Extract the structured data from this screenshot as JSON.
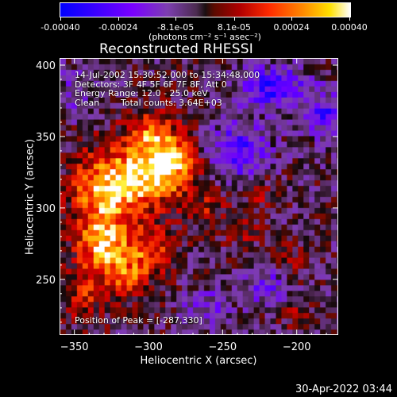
{
  "chart_data": {
    "type": "heatmap",
    "title": "Reconstructed RHESSI Image",
    "xlabel": "Heliocentric X (arcsec)",
    "ylabel": "Heliocentric Y (arcsec)",
    "xlim": [
      -360,
      -172
    ],
    "ylim": [
      211,
      405
    ],
    "xticks": [
      -350,
      -300,
      -250,
      -200
    ],
    "yticks": [
      250,
      300,
      350,
      400
    ],
    "annotations": {
      "time_range": "14-Jul-2002 15:30:52.000 to 15:34:48.000",
      "detectors": "Detectors: 3F 4F 5F 6F 7F 8F, Att 0",
      "energy": "Energy Range: 12.0 - 25.0 keV",
      "clean": "Clean",
      "counts": "Total counts: 3.64E+03",
      "peak": "Position of Peak = [-287,330]"
    },
    "peak": [
      -287,
      330
    ],
    "colorbar": {
      "min": -0.0004,
      "max": 0.0004,
      "tick_labels": [
        "-0.00040",
        "-0.00024",
        "-8.1e-05",
        "8.1e-05",
        "0.00024",
        "0.00040"
      ],
      "tick_values": [
        -0.0004,
        -0.00024,
        -8.1e-05,
        8.1e-05,
        0.00024,
        0.0004
      ],
      "units": "(photons cm⁻² s⁻¹ asec⁻²)",
      "colors": [
        "#0000ff",
        "#7a00ff",
        "#4b2b4f",
        "#000000",
        "#b00000",
        "#ff8c00",
        "#ffffff"
      ]
    },
    "blobs": [
      {
        "x": -287,
        "y": 330,
        "amp": 0.0004,
        "sx": 14,
        "sy": 14
      },
      {
        "x": -312,
        "y": 318,
        "amp": 0.00032,
        "sx": 16,
        "sy": 18
      },
      {
        "x": -335,
        "y": 308,
        "amp": 0.00028,
        "sx": 14,
        "sy": 22
      },
      {
        "x": -330,
        "y": 272,
        "amp": 0.00033,
        "sx": 12,
        "sy": 12
      },
      {
        "x": -300,
        "y": 268,
        "amp": 0.00024,
        "sx": 12,
        "sy": 12
      },
      {
        "x": -315,
        "y": 248,
        "amp": 0.00022,
        "sx": 10,
        "sy": 10
      },
      {
        "x": -298,
        "y": 355,
        "amp": 0.00022,
        "sx": 12,
        "sy": 12
      },
      {
        "x": -345,
        "y": 240,
        "amp": 0.00018,
        "sx": 12,
        "sy": 14
      },
      {
        "x": -262,
        "y": 300,
        "amp": 0.00014,
        "sx": 10,
        "sy": 10
      },
      {
        "x": -235,
        "y": 285,
        "amp": 0.00012,
        "sx": 10,
        "sy": 8
      },
      {
        "x": -205,
        "y": 262,
        "amp": 0.00012,
        "sx": 8,
        "sy": 8
      },
      {
        "x": -200,
        "y": 225,
        "amp": 0.0001,
        "sx": 8,
        "sy": 8
      },
      {
        "x": -225,
        "y": 310,
        "amp": 0.0001,
        "sx": 8,
        "sy": 8
      },
      {
        "x": -215,
        "y": 385,
        "amp": -0.00026,
        "sx": 16,
        "sy": 10
      },
      {
        "x": -240,
        "y": 340,
        "amp": -0.00022,
        "sx": 14,
        "sy": 14
      },
      {
        "x": -180,
        "y": 365,
        "amp": -0.00024,
        "sx": 10,
        "sy": 10
      },
      {
        "x": -220,
        "y": 245,
        "amp": -0.00016,
        "sx": 10,
        "sy": 10
      },
      {
        "x": -260,
        "y": 230,
        "amp": -0.00012,
        "sx": 12,
        "sy": 10
      },
      {
        "x": -350,
        "y": 380,
        "amp": -0.0001,
        "sx": 10,
        "sy": 12
      }
    ]
  },
  "timestamp": "30-Apr-2022 03:44"
}
